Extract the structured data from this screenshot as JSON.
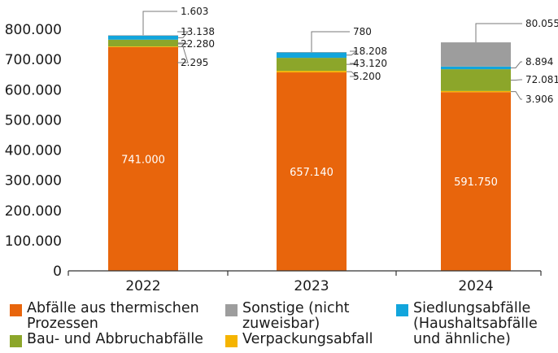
{
  "chart_data": {
    "type": "bar",
    "stacked": true,
    "categories": [
      "2022",
      "2023",
      "2024"
    ],
    "ylim": [
      0,
      800000
    ],
    "y_ticks": [
      "0",
      "100.000",
      "200.000",
      "300.000",
      "400.000",
      "500.000",
      "600.000",
      "700.000",
      "800.000"
    ],
    "y_tick_values": [
      0,
      100000,
      200000,
      300000,
      400000,
      500000,
      600000,
      700000,
      800000
    ],
    "grid": false,
    "legend_position": "bottom",
    "series": [
      {
        "name": "Abfälle aus thermischen Prozessen",
        "color": "#e8650c",
        "values": [
          741000,
          657140,
          591750
        ],
        "labels": [
          "741.000",
          "657.140",
          "591.750"
        ]
      },
      {
        "name": "Verpackungsabfall",
        "color": "#f5b400",
        "values": [
          2295,
          5200,
          3906
        ],
        "labels": [
          "2.295",
          "5.200",
          "3.906"
        ]
      },
      {
        "name": "Bau- und Abbruchabfälle",
        "color": "#8ca62a",
        "values": [
          22280,
          43120,
          72081
        ],
        "labels": [
          "22.280",
          "43.120",
          "72.081"
        ]
      },
      {
        "name": "Siedlungsabfälle (Haushaltsabfälle und ähnliche)",
        "color": "#12a5dc",
        "values": [
          13138,
          18208,
          8894
        ],
        "labels": [
          "13.138",
          "18.208",
          "8.894"
        ]
      },
      {
        "name": "Sonstige (nicht zuweisbar)",
        "color": "#9d9d9d",
        "values": [
          1603,
          780,
          80055
        ],
        "labels": [
          "1.603",
          "780",
          "80.055"
        ]
      }
    ]
  },
  "legend": {
    "items": [
      {
        "label": "Abfälle aus thermischen\nProzessen",
        "color": "#e8650c",
        "icon": "orange-square"
      },
      {
        "label": "Sonstige (nicht\nzuweisbar)",
        "color": "#9d9d9d",
        "icon": "gray-square"
      },
      {
        "label": "Siedlungsabfälle\n(Haushaltsabfälle\nund ähnliche)",
        "color": "#12a5dc",
        "icon": "blue-square"
      },
      {
        "label": "Bau- und Abbruchabfälle",
        "color": "#8ca62a",
        "icon": "green-square"
      },
      {
        "label": "Verpackungsabfall",
        "color": "#f5b400",
        "icon": "yellow-square"
      }
    ]
  }
}
